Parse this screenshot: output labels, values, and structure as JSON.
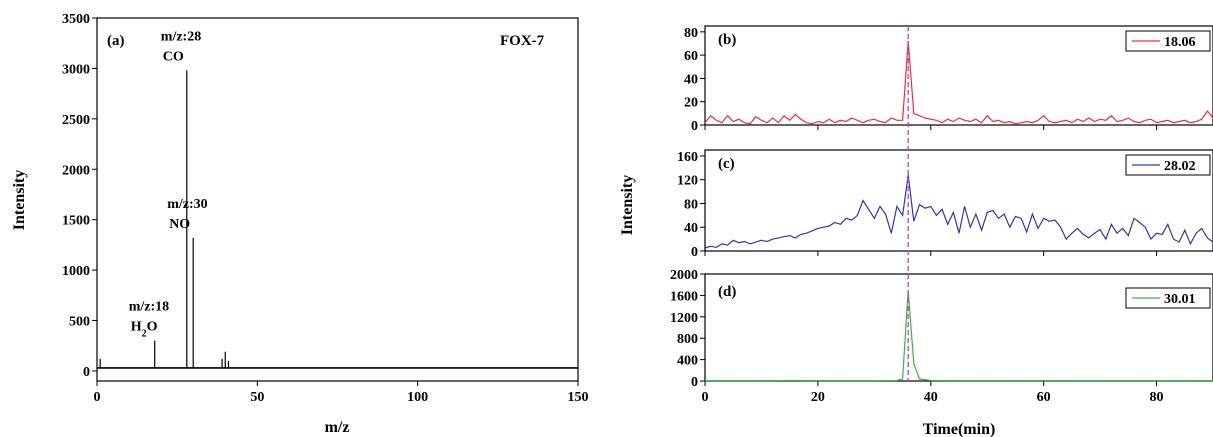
{
  "chart_data": [
    {
      "id": "a",
      "type": "line",
      "panel_label": "(a)",
      "title": "FOX-7",
      "xlabel": "m/z",
      "ylabel": "Intensity",
      "xlim": [
        0,
        150
      ],
      "ylim": [
        -100,
        3500
      ],
      "xticks": [
        "0",
        "50",
        "100",
        "150"
      ],
      "yticks": [
        "0",
        "500",
        "1000",
        "1500",
        "2000",
        "2500",
        "3000",
        "3500"
      ],
      "baseline": 30,
      "peaks": [
        {
          "mz": 1,
          "intensity": 120
        },
        {
          "mz": 18,
          "intensity": 300
        },
        {
          "mz": 28,
          "intensity": 2980
        },
        {
          "mz": 30,
          "intensity": 1320
        },
        {
          "mz": 39,
          "intensity": 120
        },
        {
          "mz": 40,
          "intensity": 190
        },
        {
          "mz": 41,
          "intensity": 100
        }
      ],
      "annotations": [
        {
          "mz_text": "m/z:18",
          "species": "H",
          "sub": "2",
          "tail": "O",
          "at": 18
        },
        {
          "mz_text": "m/z:28",
          "species": "CO",
          "sub": "",
          "tail": "",
          "at": 28
        },
        {
          "mz_text": "m/z:30",
          "species": "NO",
          "sub": "",
          "tail": "",
          "at": 30
        }
      ],
      "grid": false,
      "color": "#000000"
    },
    {
      "id": "b",
      "type": "line",
      "panel_label": "(b)",
      "legend": "18.06",
      "color": "#e8303a",
      "xlim": [
        0,
        90
      ],
      "ylim": [
        0,
        85
      ],
      "yticks": [
        "0",
        "20",
        "40",
        "60",
        "80"
      ],
      "x": [
        0,
        1,
        2,
        3,
        4,
        5,
        6,
        7,
        8,
        9,
        10,
        11,
        12,
        13,
        14,
        15,
        16,
        17,
        18,
        19,
        20,
        21,
        22,
        23,
        24,
        25,
        26,
        27,
        28,
        29,
        30,
        31,
        32,
        33,
        34,
        35,
        36,
        37,
        38,
        39,
        40,
        41,
        42,
        43,
        44,
        45,
        46,
        47,
        48,
        49,
        50,
        51,
        52,
        53,
        54,
        55,
        56,
        57,
        58,
        59,
        60,
        61,
        62,
        63,
        64,
        65,
        66,
        67,
        68,
        69,
        70,
        71,
        72,
        73,
        74,
        75,
        76,
        77,
        78,
        79,
        80,
        81,
        82,
        83,
        84,
        85,
        86,
        87,
        88,
        89,
        90
      ],
      "y": [
        2,
        8,
        4,
        2,
        8,
        3,
        5,
        2,
        1,
        7,
        4,
        2,
        6,
        2,
        8,
        4,
        9,
        5,
        2,
        1,
        3,
        2,
        5,
        2,
        4,
        3,
        6,
        4,
        2,
        4,
        5,
        3,
        2,
        6,
        4,
        4,
        72,
        10,
        8,
        6,
        5,
        4,
        2,
        5,
        3,
        6,
        4,
        3,
        5,
        2,
        8,
        3,
        4,
        2,
        3,
        1,
        2,
        3,
        2,
        4,
        8,
        3,
        2,
        3,
        4,
        2,
        5,
        3,
        6,
        3,
        5,
        4,
        8,
        3,
        4,
        6,
        3,
        2,
        4,
        5,
        2,
        3,
        4,
        2,
        3,
        4,
        2,
        3,
        5,
        12,
        6
      ]
    },
    {
      "id": "c",
      "type": "line",
      "panel_label": "(c)",
      "legend": "28.02",
      "color": "#2f3a9e",
      "xlim": [
        0,
        90
      ],
      "ylim": [
        0,
        170
      ],
      "yticks": [
        "0",
        "40",
        "80",
        "120",
        "160"
      ],
      "x": [
        0,
        1,
        2,
        3,
        4,
        5,
        6,
        7,
        8,
        9,
        10,
        11,
        12,
        13,
        14,
        15,
        16,
        17,
        18,
        19,
        20,
        21,
        22,
        23,
        24,
        25,
        26,
        27,
        28,
        29,
        30,
        31,
        32,
        33,
        34,
        35,
        36,
        37,
        38,
        39,
        40,
        41,
        42,
        43,
        44,
        45,
        46,
        47,
        48,
        49,
        50,
        51,
        52,
        53,
        54,
        55,
        56,
        57,
        58,
        59,
        60,
        61,
        62,
        63,
        64,
        65,
        66,
        67,
        68,
        69,
        70,
        71,
        72,
        73,
        74,
        75,
        76,
        77,
        78,
        79,
        80,
        81,
        82,
        83,
        84,
        85,
        86,
        87,
        88,
        89,
        90
      ],
      "y": [
        5,
        8,
        6,
        12,
        10,
        18,
        14,
        16,
        12,
        15,
        18,
        16,
        20,
        22,
        24,
        26,
        22,
        28,
        30,
        34,
        38,
        40,
        42,
        48,
        45,
        55,
        52,
        60,
        85,
        70,
        55,
        75,
        62,
        30,
        75,
        60,
        128,
        50,
        78,
        72,
        75,
        60,
        70,
        45,
        65,
        30,
        75,
        40,
        62,
        35,
        65,
        68,
        55,
        62,
        40,
        58,
        55,
        32,
        62,
        38,
        55,
        50,
        52,
        40,
        20,
        30,
        38,
        28,
        22,
        30,
        36,
        20,
        45,
        30,
        38,
        26,
        55,
        48,
        40,
        20,
        30,
        28,
        45,
        20,
        15,
        35,
        12,
        30,
        38,
        22,
        15
      ]
    },
    {
      "id": "d",
      "type": "line",
      "panel_label": "(d)",
      "legend": "30.01",
      "color": "#3cb346",
      "xlabel": "Time(min)",
      "xlim": [
        0,
        90
      ],
      "ylim": [
        0,
        2000
      ],
      "yticks": [
        "0",
        "400",
        "800",
        "1200",
        "1600",
        "2000"
      ],
      "xticks": [
        "0",
        "20",
        "40",
        "60",
        "80"
      ],
      "x": [
        0,
        5,
        10,
        15,
        20,
        25,
        30,
        34,
        35,
        36,
        37,
        38,
        40,
        45,
        50,
        55,
        60,
        65,
        70,
        75,
        80,
        85,
        90
      ],
      "y": [
        5,
        8,
        5,
        10,
        6,
        8,
        5,
        10,
        40,
        1700,
        320,
        40,
        10,
        6,
        8,
        5,
        8,
        6,
        5,
        8,
        6,
        5,
        8
      ]
    }
  ],
  "shared": {
    "right_ylabel": "Intensity",
    "marker_time": 36,
    "marker_color": "#c04cc0"
  }
}
